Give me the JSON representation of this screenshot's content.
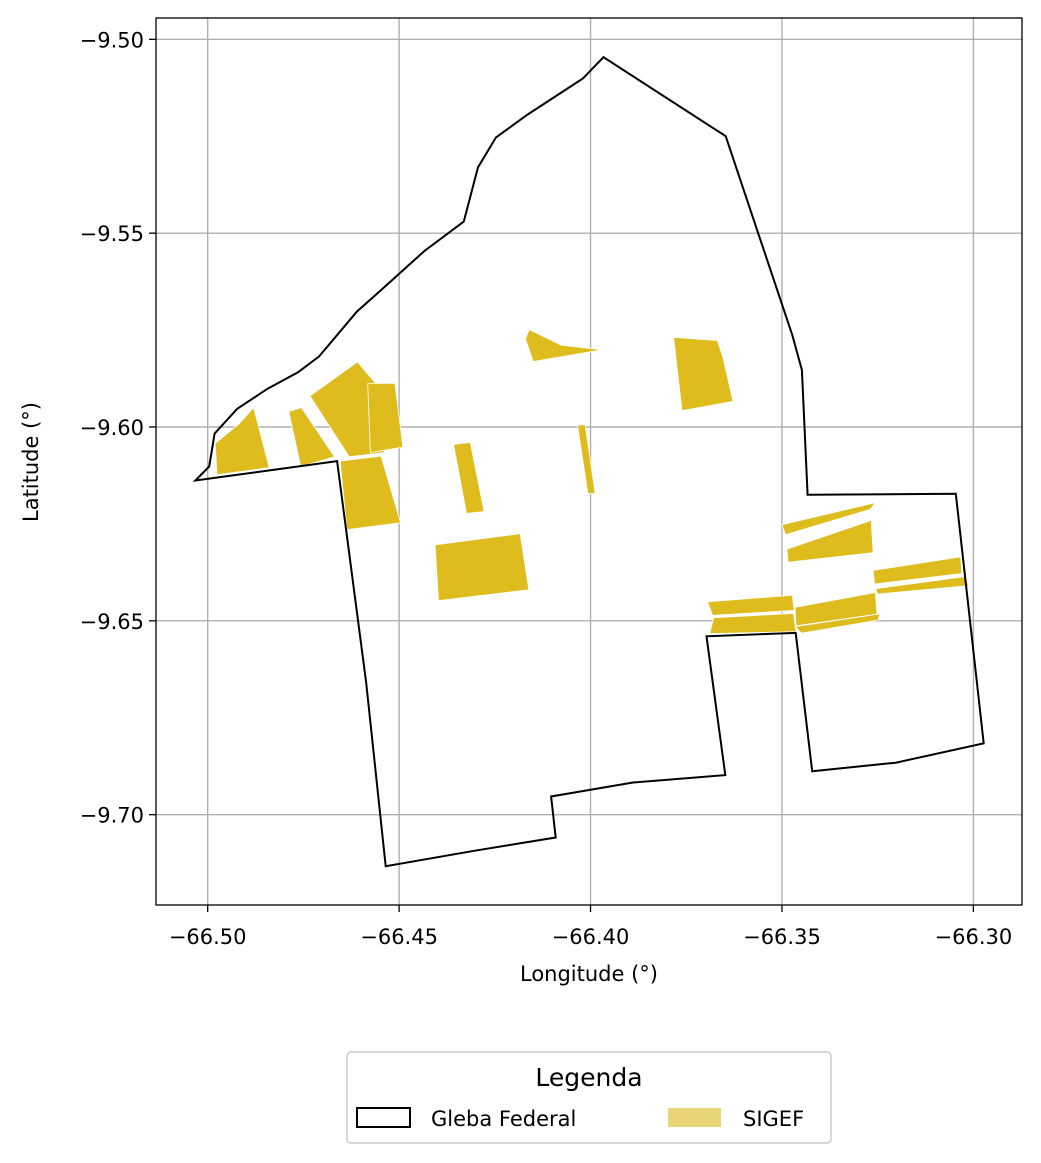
{
  "chart_data": {
    "type": "map",
    "xlabel": "Longitude (°)",
    "ylabel": "Latitude (°)",
    "xlim": [
      -66.5135,
      -66.2873
    ],
    "ylim": [
      -9.7233,
      -9.4945
    ],
    "grid": true,
    "x_ticks": [
      -66.5,
      -66.45,
      -66.4,
      -66.35,
      -66.3
    ],
    "x_tick_labels": [
      "−66.50",
      "−66.45",
      "−66.40",
      "−66.35",
      "−66.30"
    ],
    "y_ticks": [
      -9.5,
      -9.55,
      -9.6,
      -9.65,
      -9.7
    ],
    "y_tick_labels": [
      "−9.50",
      "−9.55",
      "−9.60",
      "−9.65",
      "−9.70"
    ],
    "colors": {
      "gleba_edge": "#000000",
      "sigef_fill": "#dfbc1e",
      "legend_sigef_fill": "#ead574",
      "grid": "#b0b0b0"
    },
    "legend": {
      "title": "Legenda",
      "placement": "bottom-center",
      "entries": [
        {
          "label": "Gleba Federal",
          "style": "outline"
        },
        {
          "label": "SIGEF",
          "style": "fill"
        }
      ]
    },
    "gleba_federal": [
      [
        -66.5032,
        -9.6138
      ],
      [
        -66.4996,
        -9.6102
      ],
      [
        -66.4982,
        -9.6017
      ],
      [
        -66.4923,
        -9.5953
      ],
      [
        -66.4843,
        -9.5901
      ],
      [
        -66.4764,
        -9.5859
      ],
      [
        -66.4709,
        -9.5818
      ],
      [
        -66.461,
        -9.5702
      ],
      [
        -66.4553,
        -9.5652
      ],
      [
        -66.4434,
        -9.5546
      ],
      [
        -66.4331,
        -9.547
      ],
      [
        -66.4294,
        -9.533
      ],
      [
        -66.4247,
        -9.5253
      ],
      [
        -66.4164,
        -9.5194
      ],
      [
        -66.402,
        -9.5101
      ],
      [
        -66.3966,
        -9.5046
      ],
      [
        -66.3647,
        -9.525
      ],
      [
        -66.3473,
        -9.5763
      ],
      [
        -66.3448,
        -9.5853
      ],
      [
        -66.3433,
        -9.6175
      ],
      [
        -66.3046,
        -9.6172
      ],
      [
        -66.2973,
        -9.6816
      ],
      [
        -66.3203,
        -9.6866
      ],
      [
        -66.3421,
        -9.6888
      ],
      [
        -66.3464,
        -9.6531
      ],
      [
        -66.3697,
        -9.654
      ],
      [
        -66.3648,
        -9.6898
      ],
      [
        -66.3889,
        -9.6917
      ],
      [
        -66.4103,
        -9.6953
      ],
      [
        -66.4091,
        -9.7059
      ],
      [
        -66.4302,
        -9.7093
      ],
      [
        -66.4535,
        -9.7133
      ],
      [
        -66.4586,
        -9.666
      ],
      [
        -66.4662,
        -9.6088
      ]
    ],
    "sigef": [
      [
        [
          -66.498,
          -9.6042
        ],
        [
          -66.4917,
          -9.5991
        ],
        [
          -66.488,
          -9.595
        ],
        [
          -66.4839,
          -9.6105
        ],
        [
          -66.4976,
          -9.6123
        ]
      ],
      [
        [
          -66.4788,
          -9.596
        ],
        [
          -66.4755,
          -9.595
        ],
        [
          -66.4669,
          -9.6077
        ],
        [
          -66.4757,
          -9.6102
        ]
      ],
      [
        [
          -66.4733,
          -9.592
        ],
        [
          -66.4609,
          -9.5832
        ],
        [
          -66.4552,
          -9.5898
        ],
        [
          -66.4539,
          -9.6066
        ],
        [
          -66.463,
          -9.6077
        ]
      ],
      [
        [
          -66.4582,
          -9.5888
        ],
        [
          -66.4511,
          -9.5887
        ],
        [
          -66.449,
          -9.6052
        ],
        [
          -66.4575,
          -9.6066
        ]
      ],
      [
        [
          -66.4654,
          -9.6088
        ],
        [
          -66.4547,
          -9.6075
        ],
        [
          -66.4496,
          -9.6247
        ],
        [
          -66.4636,
          -9.6265
        ]
      ],
      [
        [
          -66.4358,
          -9.6045
        ],
        [
          -66.4314,
          -9.604
        ],
        [
          -66.4278,
          -9.6218
        ],
        [
          -66.4324,
          -9.6223
        ]
      ],
      [
        [
          -66.417,
          -9.5772
        ],
        [
          -66.416,
          -9.5749
        ],
        [
          -66.4076,
          -9.5789
        ],
        [
          -66.3969,
          -9.5801
        ],
        [
          -66.415,
          -9.5831
        ]
      ],
      [
        [
          -66.4034,
          -9.5995
        ],
        [
          -66.4014,
          -9.5994
        ],
        [
          -66.3988,
          -9.6171
        ],
        [
          -66.4007,
          -9.6172
        ]
      ],
      [
        [
          -66.3783,
          -9.5769
        ],
        [
          -66.3669,
          -9.5777
        ],
        [
          -66.3654,
          -9.5821
        ],
        [
          -66.3628,
          -9.5934
        ],
        [
          -66.3761,
          -9.5958
        ]
      ],
      [
        [
          -66.4406,
          -9.6304
        ],
        [
          -66.4184,
          -9.6275
        ],
        [
          -66.4161,
          -9.642
        ],
        [
          -66.4397,
          -9.6448
        ]
      ],
      [
        [
          -66.35,
          -9.6252
        ],
        [
          -66.3256,
          -9.6195
        ],
        [
          -66.3269,
          -9.6212
        ],
        [
          -66.3491,
          -9.6278
        ]
      ],
      [
        [
          -66.3487,
          -9.6315
        ],
        [
          -66.3267,
          -9.6241
        ],
        [
          -66.3262,
          -9.6324
        ],
        [
          -66.3484,
          -9.6349
        ]
      ],
      [
        [
          -66.3262,
          -9.637
        ],
        [
          -66.3033,
          -9.6335
        ],
        [
          -66.303,
          -9.6378
        ],
        [
          -66.3258,
          -9.6405
        ]
      ],
      [
        [
          -66.3256,
          -9.6417
        ],
        [
          -66.3023,
          -9.6386
        ],
        [
          -66.3012,
          -9.6409
        ],
        [
          -66.325,
          -9.6431
        ]
      ],
      [
        [
          -66.3695,
          -9.6451
        ],
        [
          -66.3473,
          -9.6434
        ],
        [
          -66.3468,
          -9.6473
        ],
        [
          -66.3681,
          -9.6486
        ]
      ],
      [
        [
          -66.3466,
          -9.6465
        ],
        [
          -66.3256,
          -9.6427
        ],
        [
          -66.3252,
          -9.6483
        ],
        [
          -66.3463,
          -9.6513
        ]
      ],
      [
        [
          -66.3678,
          -9.6492
        ],
        [
          -66.347,
          -9.6481
        ],
        [
          -66.3463,
          -9.6528
        ],
        [
          -66.3689,
          -9.6533
        ]
      ],
      [
        [
          -66.3466,
          -9.6515
        ],
        [
          -66.3244,
          -9.6482
        ],
        [
          -66.3249,
          -9.6498
        ],
        [
          -66.3449,
          -9.6532
        ]
      ]
    ]
  }
}
